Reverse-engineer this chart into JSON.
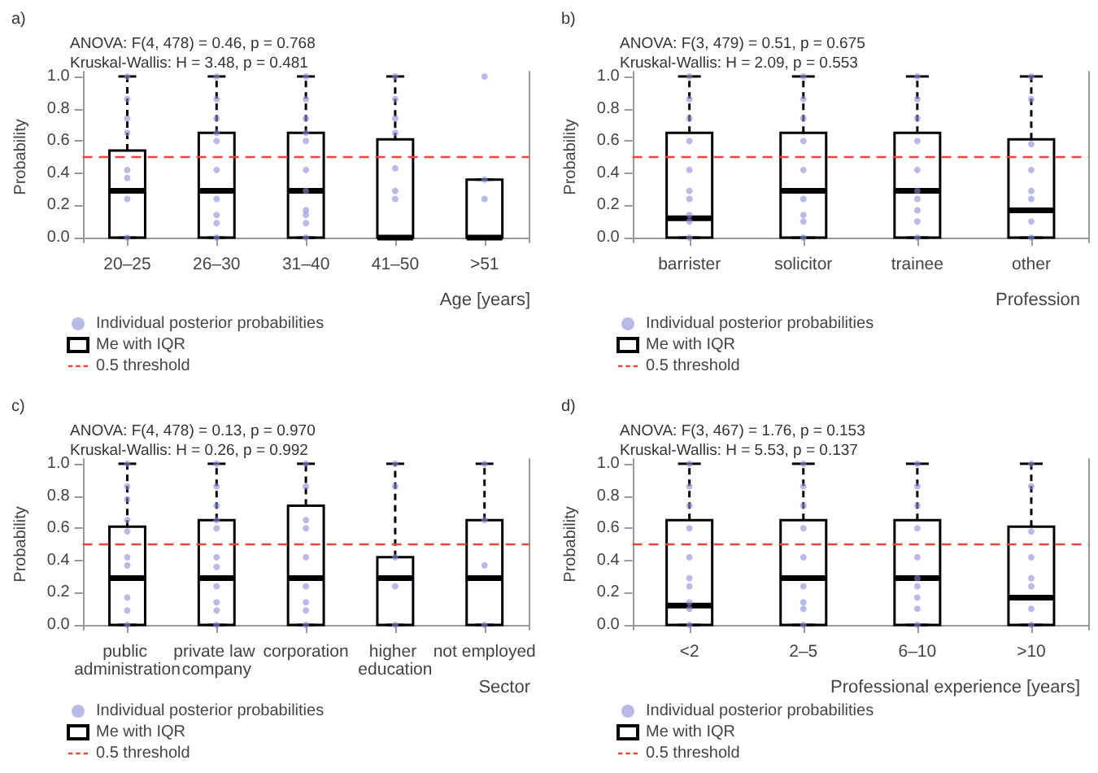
{
  "chart_data": [
    {
      "type": "box",
      "title": "a)",
      "annotations": [
        "ANOVA: F(4, 478) = 0.46, p = 0.768",
        "Kruskal-Wallis: H = 3.48, p = 0.481"
      ],
      "xlabel": "Age [years]",
      "ylabel": "Probability",
      "categories": [
        "20–25",
        "26–30",
        "31–40",
        "41–50",
        ">51"
      ],
      "ylim": [
        -0.03,
        1.03
      ],
      "yticks": [
        {
          "value": 0,
          "label": "0.0"
        },
        {
          "value": 0.2,
          "label": "0.2"
        },
        {
          "value": 0.4,
          "label": "0.4"
        },
        {
          "value": 0.6,
          "label": "0.6"
        },
        {
          "value": 0.8,
          "label": "0.8"
        },
        {
          "value": 1,
          "label": "1.0"
        }
      ],
      "grid": false,
      "legend": "bottom left",
      "marker": "circle",
      "ref_lines": [
        {
          "axis": "y",
          "value": 0.5,
          "label": "0.5 threshold",
          "color": "#e8463c",
          "line_style": "dashed"
        }
      ],
      "series": [
        {
          "name": "Individual posterior probabilities",
          "type": "scatter",
          "color": "#8c8cd8",
          "x": [
            "20–25",
            "20–25",
            "20–25",
            "20–25",
            "20–25",
            "20–25",
            "20–25",
            "20–25",
            "26–30",
            "26–30",
            "26–30",
            "26–30",
            "26–30",
            "26–30",
            "26–30",
            "26–30",
            "26–30",
            "26–30",
            "31–40",
            "31–40",
            "31–40",
            "31–40",
            "31–40",
            "31–40",
            "31–40",
            "31–40",
            "31–40",
            "31–40",
            "31–40",
            "41–50",
            "41–50",
            "41–50",
            "41–50",
            "41–50",
            "41–50",
            "41–50",
            ">51",
            ">51",
            ">51"
          ],
          "values": [
            0,
            0.24,
            0.37,
            0.42,
            0.65,
            0.74,
            0.86,
            1,
            0,
            0.09,
            0.14,
            0.24,
            0.42,
            0.6,
            0.65,
            0.74,
            0.86,
            1,
            0,
            0.09,
            0.14,
            0.17,
            0.29,
            0.42,
            0.6,
            0.65,
            0.74,
            0.86,
            1,
            0.24,
            0.29,
            0.43,
            0.65,
            0.74,
            0.86,
            1,
            0.24,
            0.36,
            1
          ]
        },
        {
          "name": "Me with IQR",
          "type": "box",
          "color": "#000000",
          "boxes": [
            {
              "low": 0,
              "q1": 0,
              "median": 0.29,
              "q3": 0.54,
              "high": 1
            },
            {
              "low": 0,
              "q1": 0,
              "median": 0.29,
              "q3": 0.65,
              "high": 1
            },
            {
              "low": 0,
              "q1": 0,
              "median": 0.29,
              "q3": 0.65,
              "high": 1
            },
            {
              "low": 0,
              "q1": 0,
              "median": 0,
              "q3": 0.61,
              "high": 1
            },
            {
              "low": 0,
              "q1": 0,
              "median": 0,
              "q3": 0.36,
              "high": 0.36
            }
          ]
        }
      ]
    },
    {
      "type": "box",
      "title": "b)",
      "annotations": [
        "ANOVA: F(3, 479) = 0.51, p = 0.675",
        "Kruskal-Wallis: H = 2.09, p = 0.553"
      ],
      "xlabel": "Profession",
      "ylabel": "Probability",
      "categories": [
        "barrister",
        "solicitor",
        "trainee",
        "other"
      ],
      "ylim": [
        -0.03,
        1.03
      ],
      "yticks": [
        {
          "value": 0,
          "label": "0.0"
        },
        {
          "value": 0.2,
          "label": "0.2"
        },
        {
          "value": 0.4,
          "label": "0.4"
        },
        {
          "value": 0.6,
          "label": "0.6"
        },
        {
          "value": 0.8,
          "label": "0.8"
        },
        {
          "value": 1,
          "label": "1.0"
        }
      ],
      "grid": false,
      "legend": "bottom left",
      "marker": "circle",
      "ref_lines": [
        {
          "axis": "y",
          "value": 0.5,
          "label": "0.5 threshold",
          "color": "#e8463c",
          "line_style": "dashed"
        }
      ],
      "series": [
        {
          "name": "Individual posterior probabilities",
          "type": "scatter",
          "color": "#8c8cd8",
          "x": [
            "barrister",
            "barrister",
            "barrister",
            "barrister",
            "barrister",
            "barrister",
            "barrister",
            "barrister",
            "barrister",
            "barrister",
            "solicitor",
            "solicitor",
            "solicitor",
            "solicitor",
            "solicitor",
            "solicitor",
            "solicitor",
            "solicitor",
            "solicitor",
            "trainee",
            "trainee",
            "trainee",
            "trainee",
            "trainee",
            "trainee",
            "trainee",
            "trainee",
            "trainee",
            "trainee",
            "other",
            "other",
            "other",
            "other",
            "other",
            "other",
            "other",
            "other"
          ],
          "values": [
            0,
            0.1,
            0.14,
            0.24,
            0.29,
            0.42,
            0.6,
            0.74,
            0.86,
            1,
            0,
            0.1,
            0.14,
            0.24,
            0.42,
            0.6,
            0.74,
            0.86,
            1,
            0,
            0.1,
            0.17,
            0.24,
            0.29,
            0.42,
            0.6,
            0.74,
            0.86,
            1,
            0,
            0.1,
            0.24,
            0.29,
            0.42,
            0.58,
            0.86,
            1
          ]
        },
        {
          "name": "Me with IQR",
          "type": "box",
          "color": "#000000",
          "boxes": [
            {
              "low": 0,
              "q1": 0,
              "median": 0.12,
              "q3": 0.65,
              "high": 1
            },
            {
              "low": 0,
              "q1": 0,
              "median": 0.29,
              "q3": 0.65,
              "high": 1
            },
            {
              "low": 0,
              "q1": 0,
              "median": 0.29,
              "q3": 0.65,
              "high": 1
            },
            {
              "low": 0,
              "q1": 0,
              "median": 0.17,
              "q3": 0.61,
              "high": 1
            }
          ]
        }
      ]
    },
    {
      "type": "box",
      "title": "c)",
      "annotations": [
        "ANOVA: F(4, 478) = 0.13, p = 0.970",
        "Kruskal-Wallis: H = 0.26, p = 0.992"
      ],
      "xlabel": "Sector",
      "ylabel": "Probability",
      "categories": [
        "public administration",
        "private law company",
        "corporation",
        "higher education",
        "not employed"
      ],
      "ylim": [
        -0.03,
        1.03
      ],
      "yticks": [
        {
          "value": 0,
          "label": "0.0"
        },
        {
          "value": 0.2,
          "label": "0.2"
        },
        {
          "value": 0.4,
          "label": "0.4"
        },
        {
          "value": 0.6,
          "label": "0.6"
        },
        {
          "value": 0.8,
          "label": "0.8"
        },
        {
          "value": 1,
          "label": "1.0"
        }
      ],
      "grid": false,
      "legend": "bottom left",
      "marker": "circle",
      "ref_lines": [
        {
          "axis": "y",
          "value": 0.5,
          "label": "0.5 threshold",
          "color": "#e8463c",
          "line_style": "dashed"
        }
      ],
      "series": [
        {
          "name": "Individual posterior probabilities",
          "type": "scatter",
          "color": "#8c8cd8",
          "x": [
            "public administration",
            "public administration",
            "public administration",
            "public administration",
            "public administration",
            "public administration",
            "public administration",
            "public administration",
            "public administration",
            "public administration",
            "private law company",
            "private law company",
            "private law company",
            "private law company",
            "private law company",
            "private law company",
            "private law company",
            "private law company",
            "private law company",
            "private law company",
            "private law company",
            "corporation",
            "corporation",
            "corporation",
            "corporation",
            "corporation",
            "corporation",
            "corporation",
            "corporation",
            "corporation",
            "higher education",
            "higher education",
            "higher education",
            "higher education",
            "higher education",
            "not employed",
            "not employed",
            "not employed",
            "not employed"
          ],
          "values": [
            0,
            0.09,
            0.17,
            0.37,
            0.42,
            0.58,
            0.65,
            0.78,
            0.86,
            1,
            0,
            0.09,
            0.14,
            0.24,
            0.36,
            0.42,
            0.6,
            0.65,
            0.74,
            0.86,
            1,
            0,
            0.09,
            0.14,
            0.24,
            0.42,
            0.6,
            0.65,
            0.86,
            1,
            0,
            0.24,
            0.42,
            0.86,
            1,
            0,
            0.37,
            0.65,
            1
          ]
        },
        {
          "name": "Me with IQR",
          "type": "box",
          "color": "#000000",
          "boxes": [
            {
              "low": 0,
              "q1": 0,
              "median": 0.29,
              "q3": 0.61,
              "high": 1
            },
            {
              "low": 0,
              "q1": 0,
              "median": 0.29,
              "q3": 0.65,
              "high": 1
            },
            {
              "low": 0,
              "q1": 0,
              "median": 0.29,
              "q3": 0.74,
              "high": 1
            },
            {
              "low": 0,
              "q1": 0,
              "median": 0.29,
              "q3": 0.42,
              "high": 1
            },
            {
              "low": 0,
              "q1": 0,
              "median": 0.29,
              "q3": 0.65,
              "high": 1
            }
          ]
        }
      ]
    },
    {
      "type": "box",
      "title": "d)",
      "annotations": [
        "ANOVA: F(3, 467) = 1.76, p = 0.153",
        "Kruskal-Wallis: H = 5.53, p = 0.137"
      ],
      "xlabel": "Professional experience [years]",
      "ylabel": "Probability",
      "categories": [
        "<2",
        "2–5",
        "6–10",
        ">10"
      ],
      "ylim": [
        -0.03,
        1.03
      ],
      "yticks": [
        {
          "value": 0,
          "label": "0.0"
        },
        {
          "value": 0.2,
          "label": "0.2"
        },
        {
          "value": 0.4,
          "label": "0.4"
        },
        {
          "value": 0.6,
          "label": "0.6"
        },
        {
          "value": 0.8,
          "label": "0.8"
        },
        {
          "value": 1,
          "label": "1.0"
        }
      ],
      "grid": false,
      "legend": "bottom left",
      "marker": "circle",
      "ref_lines": [
        {
          "axis": "y",
          "value": 0.5,
          "label": "0.5 threshold",
          "color": "#e8463c",
          "line_style": "dashed"
        }
      ],
      "series": [
        {
          "name": "Individual posterior probabilities",
          "type": "scatter",
          "color": "#8c8cd8",
          "x": [
            "<2",
            "<2",
            "<2",
            "<2",
            "<2",
            "<2",
            "<2",
            "<2",
            "<2",
            "<2",
            "2–5",
            "2–5",
            "2–5",
            "2–5",
            "2–5",
            "2–5",
            "2–5",
            "2–5",
            "2–5",
            "6–10",
            "6–10",
            "6–10",
            "6–10",
            "6–10",
            "6–10",
            "6–10",
            "6–10",
            "6–10",
            "6–10",
            ">10",
            ">10",
            ">10",
            ">10",
            ">10",
            ">10",
            ">10",
            ">10"
          ],
          "values": [
            0,
            0.1,
            0.14,
            0.24,
            0.29,
            0.42,
            0.6,
            0.74,
            0.86,
            1,
            0,
            0.1,
            0.14,
            0.24,
            0.42,
            0.6,
            0.74,
            0.86,
            1,
            0,
            0.1,
            0.17,
            0.24,
            0.29,
            0.42,
            0.6,
            0.74,
            0.86,
            1,
            0,
            0.1,
            0.24,
            0.29,
            0.42,
            0.58,
            0.86,
            1
          ]
        },
        {
          "name": "Me with IQR",
          "type": "box",
          "color": "#000000",
          "boxes": [
            {
              "low": 0,
              "q1": 0,
              "median": 0.12,
              "q3": 0.65,
              "high": 1
            },
            {
              "low": 0,
              "q1": 0,
              "median": 0.29,
              "q3": 0.65,
              "high": 1
            },
            {
              "low": 0,
              "q1": 0,
              "median": 0.29,
              "q3": 0.65,
              "high": 1
            },
            {
              "low": 0,
              "q1": 0,
              "median": 0.17,
              "q3": 0.61,
              "high": 1
            }
          ]
        }
      ]
    }
  ]
}
